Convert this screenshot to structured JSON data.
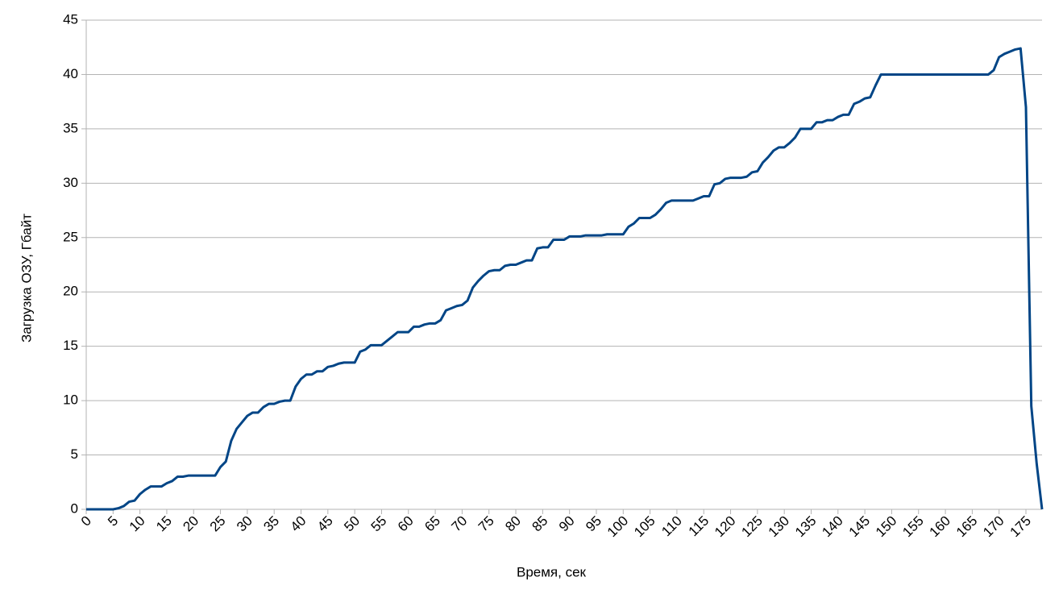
{
  "chart_data": {
    "type": "line",
    "x_label": "Время, сек",
    "y_label": "Загрузка ОЗУ, Гбайт",
    "x": [
      0,
      1,
      2,
      3,
      4,
      5,
      6,
      7,
      8,
      9,
      10,
      11,
      12,
      13,
      14,
      15,
      16,
      17,
      18,
      19,
      20,
      21,
      22,
      23,
      24,
      25,
      26,
      27,
      28,
      29,
      30,
      31,
      32,
      33,
      34,
      35,
      36,
      37,
      38,
      39,
      40,
      41,
      42,
      43,
      44,
      45,
      46,
      47,
      48,
      49,
      50,
      51,
      52,
      53,
      54,
      55,
      56,
      57,
      58,
      59,
      60,
      61,
      62,
      63,
      64,
      65,
      66,
      67,
      68,
      69,
      70,
      71,
      72,
      73,
      74,
      75,
      76,
      77,
      78,
      79,
      80,
      81,
      82,
      83,
      84,
      85,
      86,
      87,
      88,
      89,
      90,
      91,
      92,
      93,
      94,
      95,
      96,
      97,
      98,
      99,
      100,
      101,
      102,
      103,
      104,
      105,
      106,
      107,
      108,
      109,
      110,
      111,
      112,
      113,
      114,
      115,
      116,
      117,
      118,
      119,
      120,
      121,
      122,
      123,
      124,
      125,
      126,
      127,
      128,
      129,
      130,
      131,
      132,
      133,
      134,
      135,
      136,
      137,
      138,
      139,
      140,
      141,
      142,
      143,
      144,
      145,
      146,
      147,
      148,
      149,
      150,
      151,
      152,
      153,
      154,
      155,
      156,
      157,
      158,
      159,
      160,
      161,
      162,
      163,
      164,
      165,
      166,
      167,
      168,
      169,
      170,
      171,
      172,
      173,
      174,
      175,
      176,
      177,
      178
    ],
    "series": [
      {
        "color": "#004586",
        "values": [
          0,
          0,
          0,
          0,
          0,
          0,
          0.1,
          0.3,
          0.7,
          0.8,
          1.4,
          1.8,
          2.1,
          2.1,
          2.1,
          2.4,
          2.6,
          3.0,
          3.0,
          3.1,
          3.1,
          3.1,
          3.1,
          3.1,
          3.1,
          3.9,
          4.4,
          6.3,
          7.4,
          8.0,
          8.6,
          8.9,
          8.9,
          9.4,
          9.7,
          9.7,
          9.9,
          10.0,
          10.0,
          11.3,
          12.0,
          12.4,
          12.4,
          12.7,
          12.7,
          13.1,
          13.2,
          13.4,
          13.5,
          13.5,
          13.5,
          14.5,
          14.7,
          15.1,
          15.1,
          15.1,
          15.5,
          15.9,
          16.3,
          16.3,
          16.3,
          16.8,
          16.8,
          17.0,
          17.1,
          17.1,
          17.4,
          18.3,
          18.5,
          18.7,
          18.8,
          19.2,
          20.4,
          21.0,
          21.5,
          21.9,
          22.0,
          22.0,
          22.4,
          22.5,
          22.5,
          22.7,
          22.9,
          22.9,
          24.0,
          24.1,
          24.1,
          24.8,
          24.8,
          24.8,
          25.1,
          25.1,
          25.1,
          25.2,
          25.2,
          25.2,
          25.2,
          25.3,
          25.3,
          25.3,
          25.3,
          26.0,
          26.3,
          26.8,
          26.8,
          26.8,
          27.1,
          27.6,
          28.2,
          28.4,
          28.4,
          28.4,
          28.4,
          28.4,
          28.6,
          28.8,
          28.8,
          29.9,
          30.0,
          30.4,
          30.5,
          30.5,
          30.5,
          30.6,
          31.0,
          31.1,
          31.9,
          32.4,
          33.0,
          33.3,
          33.3,
          33.7,
          34.2,
          35.0,
          35.0,
          35.0,
          35.6,
          35.6,
          35.8,
          35.8,
          36.1,
          36.3,
          36.3,
          37.3,
          37.5,
          37.8,
          37.9,
          39.0,
          40.0,
          40.0,
          40,
          40,
          40,
          40,
          40,
          40,
          40,
          40,
          40,
          40,
          40,
          40,
          40,
          40,
          40,
          40,
          40,
          40,
          40,
          40.4,
          41.6,
          41.9,
          42.1,
          42.3,
          42.4,
          37.0,
          9.5,
          4.2,
          0
        ]
      }
    ],
    "xlim": [
      0,
      178
    ],
    "xticks": [
      0,
      5,
      10,
      15,
      20,
      25,
      30,
      35,
      40,
      45,
      50,
      55,
      60,
      65,
      70,
      75,
      80,
      85,
      90,
      95,
      100,
      105,
      110,
      115,
      120,
      125,
      130,
      135,
      140,
      145,
      150,
      155,
      160,
      165,
      170,
      175
    ],
    "ylim": [
      0,
      45
    ],
    "yticks": [
      0,
      5,
      10,
      15,
      20,
      25,
      30,
      35,
      40,
      45
    ],
    "grid": true
  }
}
